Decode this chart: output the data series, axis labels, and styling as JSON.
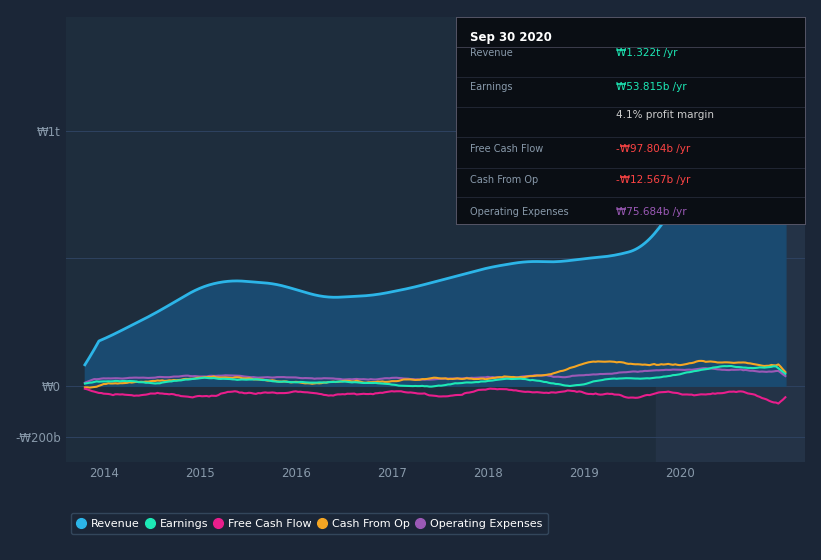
{
  "bg_color": "#1b2637",
  "plot_bg_color": "#1e2d3d",
  "highlight_bg": "#243347",
  "grid_color": "#2e4260",
  "ylabel_w0": "₩0",
  "ylabel_w1t": "₩1t",
  "ylabel_wn200b": "-₩200b",
  "xlabel_ticks": [
    2014,
    2015,
    2016,
    2017,
    2018,
    2019,
    2020
  ],
  "legend_labels": [
    "Revenue",
    "Earnings",
    "Free Cash Flow",
    "Cash From Op",
    "Operating Expenses"
  ],
  "legend_colors": [
    "#2cb5e8",
    "#1de9b6",
    "#e91e8c",
    "#f5a623",
    "#9b59b6"
  ],
  "info_box_title": "Sep 30 2020",
  "info_rows": [
    {
      "label": "Revenue",
      "value": "₩1.322t /yr",
      "value_color": "#1de9b6"
    },
    {
      "label": "Earnings",
      "value": "₩53.815b /yr",
      "value_color": "#1de9b6"
    },
    {
      "label": "",
      "value": "4.1% profit margin",
      "value_color": "#cccccc"
    },
    {
      "label": "Free Cash Flow",
      "value": "-₩97.804b /yr",
      "value_color": "#ff4444"
    },
    {
      "label": "Cash From Op",
      "value": "-₩12.567b /yr",
      "value_color": "#ff4444"
    },
    {
      "label": "Operating Expenses",
      "value": "₩75.684b /yr",
      "value_color": "#9b59b6"
    }
  ],
  "highlight_start": 2019.75,
  "highlight_end": 2021.3,
  "ylim_low": -300000000000,
  "ylim_high": 1450000000000,
  "xlim_low": 2013.6,
  "xlim_high": 2021.3,
  "revenue_color": "#2cb5e8",
  "revenue_fill": "#1a4a70",
  "earnings_color": "#1de9b6",
  "fcf_color": "#e91e8c",
  "cashfromop_color": "#f5a623",
  "opex_color": "#9b59b6"
}
